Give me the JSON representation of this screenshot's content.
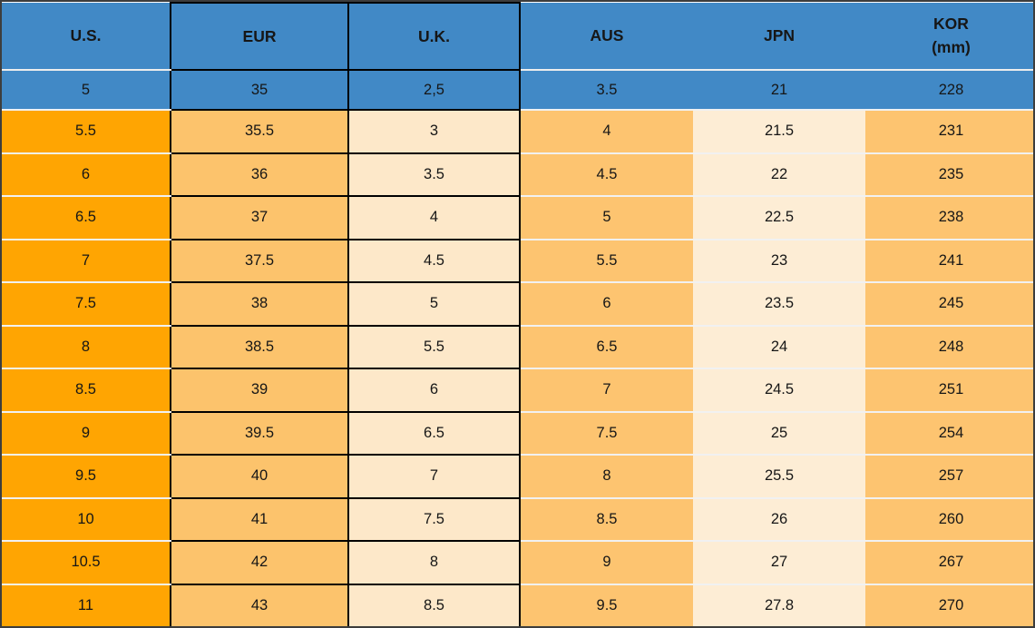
{
  "colors": {
    "header_blue": "#4189C6",
    "us_orange": "#FFA502",
    "eur_orange": "#FCC36C",
    "uk_cream": "#FDE8C9",
    "aus_orange": "#FDC470",
    "jpn_cream": "#FDEDD5",
    "kor_orange": "#FDC470",
    "sep_light": "#F1F1F1",
    "cell_border_black": "#000000",
    "outer_border": "#3D3D3D",
    "text_color": "#161616"
  },
  "table": {
    "columns": [
      {
        "key": "us",
        "label": "U.S."
      },
      {
        "key": "eur",
        "label": "EUR"
      },
      {
        "key": "uk",
        "label": "U.K."
      },
      {
        "key": "aus",
        "label": "AUS"
      },
      {
        "key": "jpn",
        "label": "JPN"
      },
      {
        "key": "kor",
        "label": "KOR",
        "sublabel": "(mm)"
      }
    ],
    "rows": [
      [
        "5",
        "35",
        "2,5",
        "3.5",
        "21",
        "228"
      ],
      [
        "5.5",
        "35.5",
        "3",
        "4",
        "21.5",
        "231"
      ],
      [
        "6",
        "36",
        "3.5",
        "4.5",
        "22",
        "235"
      ],
      [
        "6.5",
        "37",
        "4",
        "5",
        "22.5",
        "238"
      ],
      [
        "7",
        "37.5",
        "4.5",
        "5.5",
        "23",
        "241"
      ],
      [
        "7.5",
        "38",
        "5",
        "6",
        "23.5",
        "245"
      ],
      [
        "8",
        "38.5",
        "5.5",
        "6.5",
        "24",
        "248"
      ],
      [
        "8.5",
        "39",
        "6",
        "7",
        "24.5",
        "251"
      ],
      [
        "9",
        "39.5",
        "6.5",
        "7.5",
        "25",
        "254"
      ],
      [
        "9.5",
        "40",
        "7",
        "8",
        "25.5",
        "257"
      ],
      [
        "10",
        "41",
        "7.5",
        "8.5",
        "26",
        "260"
      ],
      [
        "10.5",
        "42",
        "8",
        "9",
        "27",
        "267"
      ],
      [
        "11",
        "43",
        "8.5",
        "9.5",
        "27.8",
        "270"
      ]
    ]
  },
  "chart_data": {
    "type": "table",
    "title": "Shoe size conversion chart",
    "categories": [
      "U.S.",
      "EUR",
      "U.K.",
      "AUS",
      "JPN",
      "KOR (mm)"
    ],
    "series": [
      {
        "name": "U.S.",
        "values": [
          5,
          5.5,
          6,
          6.5,
          7,
          7.5,
          8,
          8.5,
          9,
          9.5,
          10,
          10.5,
          11
        ]
      },
      {
        "name": "EUR",
        "values": [
          35,
          35.5,
          36,
          37,
          37.5,
          38,
          38.5,
          39,
          39.5,
          40,
          41,
          42,
          43
        ]
      },
      {
        "name": "U.K.",
        "values": [
          2.5,
          3,
          3.5,
          4,
          4.5,
          5,
          5.5,
          6,
          6.5,
          7,
          7.5,
          8,
          8.5
        ]
      },
      {
        "name": "AUS",
        "values": [
          3.5,
          4,
          4.5,
          5,
          5.5,
          6,
          6.5,
          7,
          7.5,
          8,
          8.5,
          9,
          9.5
        ]
      },
      {
        "name": "JPN",
        "values": [
          21,
          21.5,
          22,
          22.5,
          23,
          23.5,
          24,
          24.5,
          25,
          25.5,
          26,
          27,
          27.8
        ]
      },
      {
        "name": "KOR (mm)",
        "values": [
          228,
          231,
          235,
          238,
          241,
          245,
          248,
          251,
          254,
          257,
          260,
          267,
          270
        ]
      }
    ],
    "layout_hints": {
      "header_row_background": "#4189C6",
      "first_data_row_background": "#4189C6",
      "black_bordered_columns": [
        "EUR",
        "U.K."
      ]
    }
  }
}
